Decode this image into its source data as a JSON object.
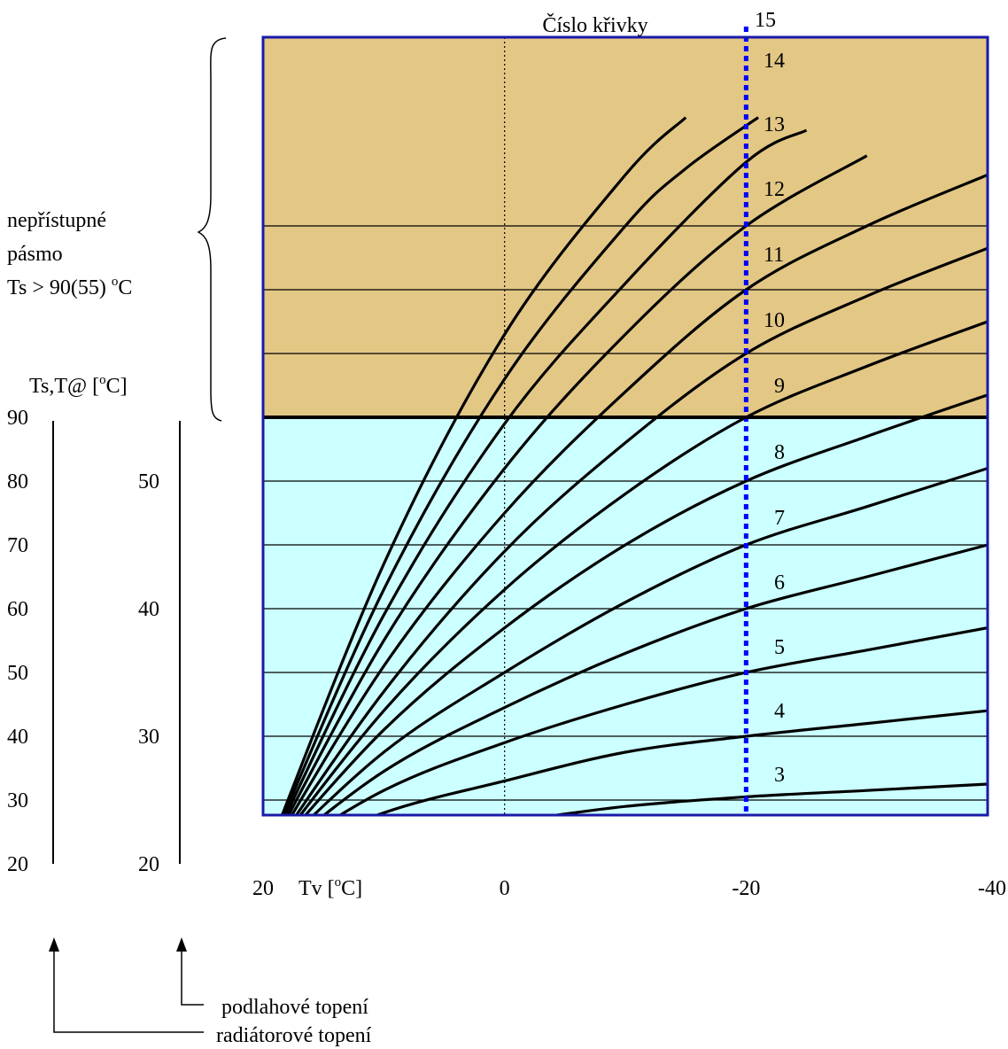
{
  "chart_data": {
    "type": "line",
    "title": "Číslo křivky",
    "xlabel": "Tv [°C]",
    "xlabel_parts": {
      "prefix": "Tv [",
      "sup": "o",
      "suffix": "C]"
    },
    "x_ticks": [
      "20",
      "0",
      "-20",
      "-40"
    ],
    "x_tick_values": [
      20,
      0,
      -20,
      -40
    ],
    "xlim": [
      20,
      -40
    ],
    "ylim": [
      20,
      130
    ],
    "y_axis_radiator": {
      "label": "Ts,T@ [°C]",
      "ticks": [
        "90",
        "80",
        "70",
        "60",
        "50",
        "40",
        "30",
        "20"
      ]
    },
    "y_axis_floor": {
      "ticks": [
        "50",
        "40",
        "30",
        "20"
      ]
    },
    "ylabel_parts": {
      "prefix": "Ts,T@  [",
      "sup": "o",
      "suffix": "C]"
    },
    "zone_note": {
      "lines": [
        "nepřístupné",
        "pásmo"
      ],
      "line3": {
        "prefix": "Ts > 90(55) ",
        "sup": "o",
        "suffix": "C"
      }
    },
    "zone_boundary": 90,
    "reference_line_x": 0,
    "selector_line_x": -20,
    "arrow_labels": {
      "floor": "podlahové topení",
      "radiator": "radiátorové topení"
    },
    "colors": {
      "zone_unreachable": "#e3c785",
      "zone_allowed": "#ccffff",
      "frame": "#1a1aa8",
      "selector": "#0000ff",
      "curves": "#000000"
    },
    "series": [
      {
        "name": "3",
        "values": [
          [
            20,
            20
          ],
          [
            10,
            24
          ],
          [
            0,
            26.5
          ],
          [
            -10,
            29
          ],
          [
            -20,
            30.5
          ],
          [
            -30,
            31.5
          ],
          [
            -40,
            32.5
          ]
        ]
      },
      {
        "name": "4",
        "values": [
          [
            20,
            20
          ],
          [
            10,
            28
          ],
          [
            0,
            33
          ],
          [
            -10,
            37.5
          ],
          [
            -20,
            40
          ],
          [
            -30,
            42
          ],
          [
            -40,
            44
          ]
        ]
      },
      {
        "name": "5",
        "values": [
          [
            20,
            20
          ],
          [
            10,
            31.5
          ],
          [
            0,
            39
          ],
          [
            -10,
            45
          ],
          [
            -20,
            50
          ],
          [
            -30,
            53.5
          ],
          [
            -40,
            57
          ]
        ]
      },
      {
        "name": "6",
        "values": [
          [
            20,
            20
          ],
          [
            10,
            34.5
          ],
          [
            0,
            44.5
          ],
          [
            -10,
            53
          ],
          [
            -20,
            60
          ],
          [
            -30,
            65
          ],
          [
            -40,
            70
          ]
        ]
      },
      {
        "name": "7",
        "values": [
          [
            20,
            20
          ],
          [
            10,
            37.5
          ],
          [
            0,
            50
          ],
          [
            -10,
            61
          ],
          [
            -20,
            70
          ],
          [
            -30,
            76
          ],
          [
            -40,
            82
          ]
        ]
      },
      {
        "name": "8",
        "values": [
          [
            20,
            20
          ],
          [
            10,
            41
          ],
          [
            0,
            57
          ],
          [
            -10,
            70
          ],
          [
            -20,
            80
          ],
          [
            -30,
            87
          ],
          [
            -40,
            93.5
          ]
        ]
      },
      {
        "name": "9",
        "values": [
          [
            20,
            20
          ],
          [
            10,
            44
          ],
          [
            0,
            63
          ],
          [
            -10,
            78
          ],
          [
            -20,
            90
          ],
          [
            -30,
            98
          ],
          [
            -40,
            105
          ]
        ]
      },
      {
        "name": "10",
        "values": [
          [
            20,
            20
          ],
          [
            10,
            47
          ],
          [
            0,
            69
          ],
          [
            -10,
            86
          ],
          [
            -20,
            100
          ],
          [
            -30,
            109
          ],
          [
            -40,
            116.5
          ]
        ]
      },
      {
        "name": "11",
        "values": [
          [
            20,
            20
          ],
          [
            10,
            51
          ],
          [
            0,
            75
          ],
          [
            -10,
            94
          ],
          [
            -20,
            110
          ],
          [
            -30,
            120
          ],
          [
            -40,
            128
          ]
        ]
      },
      {
        "name": "12",
        "values": [
          [
            20,
            20
          ],
          [
            10,
            55
          ],
          [
            0,
            82
          ],
          [
            -10,
            103
          ],
          [
            -20,
            120
          ],
          [
            -30,
            131
          ]
        ]
      },
      {
        "name": "13",
        "values": [
          [
            20,
            20
          ],
          [
            10,
            59
          ],
          [
            0,
            89
          ],
          [
            -10,
            111
          ],
          [
            -20,
            130
          ],
          [
            -25,
            135
          ]
        ]
      },
      {
        "name": "14",
        "values": [
          [
            20,
            20
          ],
          [
            10,
            63
          ],
          [
            0,
            96
          ],
          [
            -10,
            120
          ],
          [
            -15,
            129
          ],
          [
            -21,
            137
          ]
        ]
      },
      {
        "name": "15",
        "values": [
          [
            20,
            20
          ],
          [
            10,
            67
          ],
          [
            0,
            103
          ],
          [
            -10,
            128
          ],
          [
            -15,
            137
          ]
        ]
      }
    ]
  }
}
